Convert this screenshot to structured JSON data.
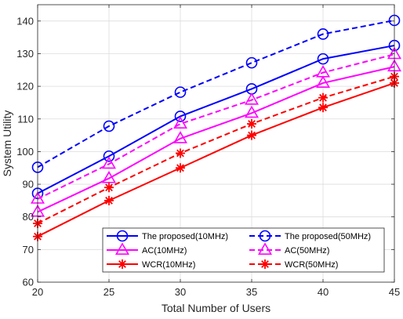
{
  "chart_data": {
    "type": "line",
    "title": "",
    "xlabel": "Total Number of Users",
    "ylabel": "System Utility",
    "x": [
      20,
      25,
      30,
      35,
      40,
      45
    ],
    "xlim": [
      20,
      45
    ],
    "ylim": [
      60,
      145
    ],
    "xticks": [
      20,
      25,
      30,
      35,
      40,
      45
    ],
    "yticks": [
      60,
      70,
      80,
      90,
      100,
      110,
      120,
      130,
      140
    ],
    "grid": true,
    "legend_placement": "bottom-right",
    "series": [
      {
        "name": "The proposed(10MHz)",
        "color": "#0000ff",
        "dash": "solid",
        "marker": "circle",
        "values": [
          87.2,
          98.6,
          110.8,
          119.2,
          128.4,
          132.5
        ]
      },
      {
        "name": "The proposed(50MHz)",
        "color": "#0000ff",
        "dash": "dashed",
        "marker": "circle",
        "values": [
          95.2,
          107.8,
          118.2,
          127.2,
          136.0,
          140.2
        ]
      },
      {
        "name": "AC(10MHz)",
        "color": "#ff00ff",
        "dash": "solid",
        "marker": "triangle",
        "values": [
          81.5,
          91.8,
          104.0,
          111.8,
          121.0,
          126.0
        ]
      },
      {
        "name": "AC(50MHz)",
        "color": "#ff00ff",
        "dash": "dashed",
        "marker": "triangle",
        "values": [
          85.5,
          96.2,
          108.5,
          115.8,
          124.2,
          129.8
        ]
      },
      {
        "name": "WCR(10MHz)",
        "color": "#ff0000",
        "dash": "solid",
        "marker": "asterisk",
        "values": [
          74.0,
          85.0,
          95.0,
          105.0,
          113.5,
          121.0
        ]
      },
      {
        "name": "WCR(50MHz)",
        "color": "#ff0000",
        "dash": "dashed",
        "marker": "asterisk",
        "values": [
          78.0,
          89.0,
          99.5,
          108.5,
          116.5,
          123.0
        ]
      }
    ],
    "legend_order": [
      0,
      1,
      2,
      3,
      4,
      5
    ]
  }
}
